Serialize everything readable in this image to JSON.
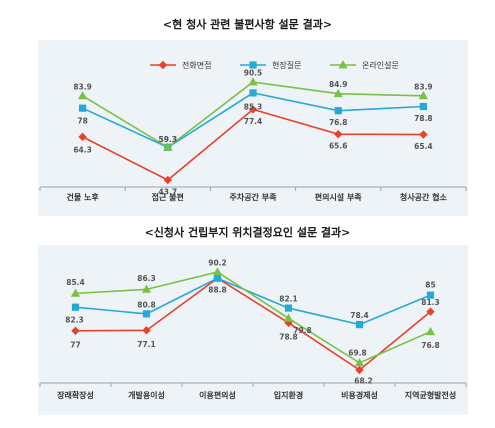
{
  "chart_data": [
    {
      "type": "line",
      "title": "<현 청사 관련 불편사항 설문 결과>",
      "categories": [
        "건물 노후",
        "접근 불편",
        "주차공간 부족",
        "편의시설 부족",
        "청사공간 협소"
      ],
      "series": [
        {
          "name": "전화면접",
          "color": "#e8412c",
          "marker": "diamond",
          "values": [
            64.3,
            43.7,
            77.4,
            65.6,
            65.4
          ]
        },
        {
          "name": "현장질문",
          "color": "#27a9d8",
          "marker": "square",
          "values": [
            78,
            59.3,
            85.3,
            76.8,
            78.8
          ]
        },
        {
          "name": "온라인설문",
          "color": "#79c043",
          "marker": "triangle",
          "values": [
            83.9,
            59.3,
            90.5,
            84.9,
            83.9
          ]
        }
      ],
      "grid": false,
      "legend": "top"
    },
    {
      "type": "line",
      "title": "<신청사 건립부지 위치결정요인 설문 결과>",
      "categories": [
        "장래확장성",
        "개발용이성",
        "이용편의성",
        "입지환경",
        "비용경제성",
        "지역균형발전성"
      ],
      "series": [
        {
          "color": "#e8412c",
          "marker": "diamond",
          "values": [
            77,
            77.1,
            88.8,
            78.8,
            68.2,
            81.3
          ]
        },
        {
          "color": "#27a9d8",
          "marker": "square",
          "values": [
            82.3,
            80.8,
            88.8,
            82.1,
            78.4,
            85
          ]
        },
        {
          "color": "#79c043",
          "marker": "triangle",
          "values": [
            85.4,
            86.3,
            90.2,
            79.8,
            69.8,
            76.8
          ]
        }
      ],
      "labels": [
        {
          "series": 0,
          "index": 0,
          "text": "77"
        },
        {
          "series": 0,
          "index": 1,
          "text": "77.1"
        },
        {
          "series": 0,
          "index": 2,
          "text": "88.8"
        },
        {
          "series": 0,
          "index": 3,
          "text": "78.8"
        },
        {
          "series": 0,
          "index": 4,
          "text": "68.2"
        },
        {
          "series": 0,
          "index": 5,
          "text": "81.3"
        },
        {
          "series": 1,
          "index": 0,
          "text": "82.3"
        },
        {
          "series": 1,
          "index": 1,
          "text": "80.8"
        },
        {
          "series": 1,
          "index": 3,
          "text": "82.1"
        },
        {
          "series": 1,
          "index": 4,
          "text": "78.4"
        },
        {
          "series": 1,
          "index": 5,
          "text": "85"
        },
        {
          "series": 2,
          "index": 0,
          "text": "85.4"
        },
        {
          "series": 2,
          "index": 1,
          "text": "86.3"
        },
        {
          "series": 2,
          "index": 2,
          "text": "90.2"
        },
        {
          "series": 2,
          "index": 3,
          "text": "79.8"
        },
        {
          "series": 2,
          "index": 4,
          "text": "69.8"
        },
        {
          "series": 2,
          "index": 5,
          "text": "76.8"
        }
      ],
      "grid": false
    }
  ]
}
